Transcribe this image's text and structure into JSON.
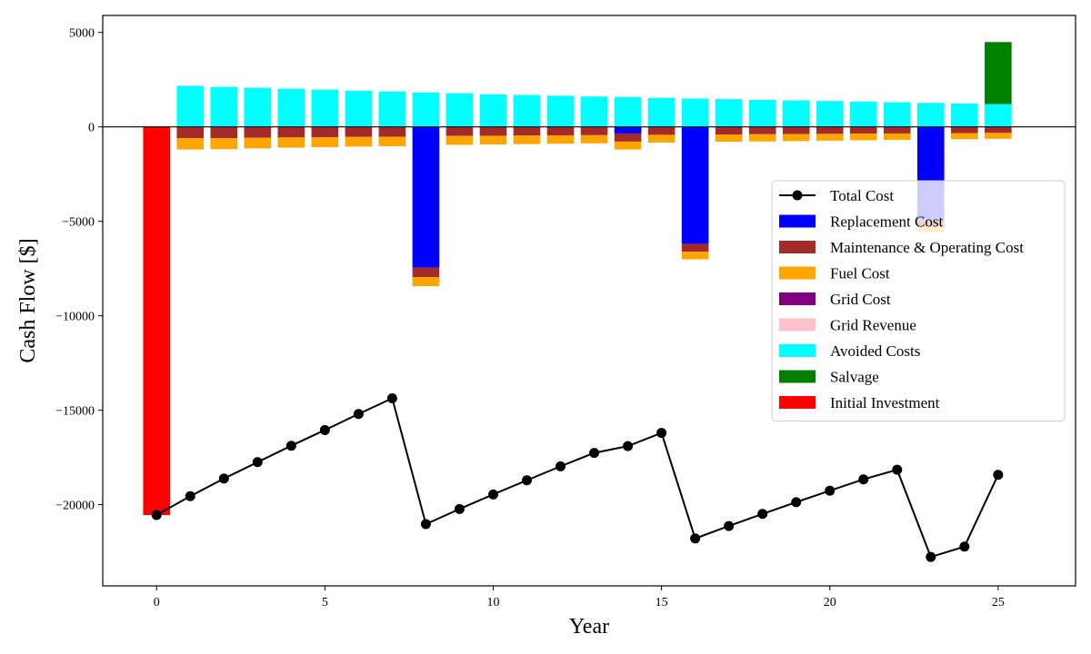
{
  "chart_data": {
    "type": "bar",
    "xlabel": "Year",
    "ylabel": "Cash Flow [$]",
    "xlim": [
      -1.6,
      27.3
    ],
    "ylim": [
      -24300,
      5900
    ],
    "xticks": [
      0,
      5,
      10,
      15,
      20,
      25
    ],
    "yticks": [
      5000,
      0,
      -5000,
      -10000,
      -15000,
      -20000
    ],
    "zero_line": true,
    "legend_position": "center-right",
    "years": [
      0,
      1,
      2,
      3,
      4,
      5,
      6,
      7,
      8,
      9,
      10,
      11,
      12,
      13,
      14,
      15,
      16,
      17,
      18,
      19,
      20,
      21,
      22,
      23,
      24,
      25
    ],
    "stack_order": [
      "Avoided Costs",
      "Salvage",
      "Replacement Cost",
      "Maintenance & Operating Cost",
      "Fuel Cost",
      "Grid Cost",
      "Grid Revenue",
      "Initial Investment"
    ],
    "series": [
      {
        "name": "Replacement Cost",
        "color": "#0000ff",
        "values": [
          0,
          0,
          0,
          0,
          0,
          0,
          0,
          0,
          -7450,
          0,
          0,
          0,
          0,
          0,
          -350,
          0,
          -6200,
          0,
          0,
          0,
          0,
          0,
          0,
          -4900,
          0,
          0
        ]
      },
      {
        "name": "Maintenance & Operating Cost",
        "color": "#a52a2a",
        "values": [
          0,
          -600,
          -600,
          -580,
          -560,
          -550,
          -530,
          -520,
          -500,
          -480,
          -470,
          -460,
          -450,
          -440,
          -430,
          -420,
          -410,
          -400,
          -390,
          -380,
          -370,
          -360,
          -350,
          -340,
          -330,
          -320
        ]
      },
      {
        "name": "Fuel Cost",
        "color": "#ffa500",
        "values": [
          0,
          -600,
          -580,
          -560,
          -540,
          -520,
          -510,
          -500,
          -480,
          -470,
          -460,
          -450,
          -440,
          -430,
          -420,
          -410,
          -400,
          -390,
          -380,
          -370,
          -360,
          -350,
          -340,
          -330,
          -320,
          -310
        ]
      },
      {
        "name": "Grid Cost",
        "color": "#800080",
        "values": [
          0,
          0,
          0,
          0,
          0,
          0,
          0,
          0,
          0,
          0,
          0,
          0,
          0,
          0,
          0,
          0,
          0,
          0,
          0,
          0,
          0,
          0,
          0,
          0,
          0,
          0
        ]
      },
      {
        "name": "Grid Revenue",
        "color": "#ffc0cb",
        "values": [
          0,
          0,
          0,
          0,
          0,
          0,
          0,
          0,
          0,
          0,
          0,
          0,
          0,
          0,
          0,
          0,
          0,
          0,
          0,
          0,
          0,
          0,
          0,
          0,
          0,
          0
        ]
      },
      {
        "name": "Avoided Costs",
        "color": "#00ffff",
        "values": [
          0,
          2170,
          2120,
          2070,
          2020,
          1970,
          1920,
          1870,
          1820,
          1780,
          1730,
          1690,
          1650,
          1610,
          1580,
          1540,
          1500,
          1470,
          1430,
          1400,
          1370,
          1340,
          1300,
          1270,
          1240,
          1210
        ]
      },
      {
        "name": "Salvage",
        "color": "#008000",
        "values": [
          0,
          0,
          0,
          0,
          0,
          0,
          0,
          0,
          0,
          0,
          0,
          0,
          0,
          0,
          0,
          0,
          0,
          0,
          0,
          0,
          0,
          0,
          0,
          0,
          0,
          3280
        ]
      },
      {
        "name": "Initial Investment",
        "color": "#ff0000",
        "values": [
          -20550,
          0,
          0,
          0,
          0,
          0,
          0,
          0,
          0,
          0,
          0,
          0,
          0,
          0,
          0,
          0,
          0,
          0,
          0,
          0,
          0,
          0,
          0,
          0,
          0,
          0
        ]
      }
    ],
    "line": {
      "name": "Total Cost",
      "color": "#000000",
      "values": [
        -20550,
        -19550,
        -18620,
        -17750,
        -16880,
        -16050,
        -15200,
        -14370,
        -21030,
        -20230,
        -19460,
        -18710,
        -17970,
        -17260,
        -16900,
        -16200,
        -21790,
        -21130,
        -20490,
        -19870,
        -19260,
        -18660,
        -18150,
        -22770,
        -22220,
        -18420
      ]
    },
    "legend": [
      {
        "name": "Total Cost",
        "kind": "line",
        "color": "#000000"
      },
      {
        "name": "Replacement Cost",
        "kind": "patch",
        "color": "#0000ff"
      },
      {
        "name": "Maintenance & Operating Cost",
        "kind": "patch",
        "color": "#a52a2a"
      },
      {
        "name": "Fuel Cost",
        "kind": "patch",
        "color": "#ffa500"
      },
      {
        "name": "Grid Cost",
        "kind": "patch",
        "color": "#800080"
      },
      {
        "name": "Grid Revenue",
        "kind": "patch",
        "color": "#ffc0cb"
      },
      {
        "name": "Avoided Costs",
        "kind": "patch",
        "color": "#00ffff"
      },
      {
        "name": "Salvage",
        "kind": "patch",
        "color": "#008000"
      },
      {
        "name": "Initial Investment",
        "kind": "patch",
        "color": "#ff0000"
      }
    ]
  }
}
